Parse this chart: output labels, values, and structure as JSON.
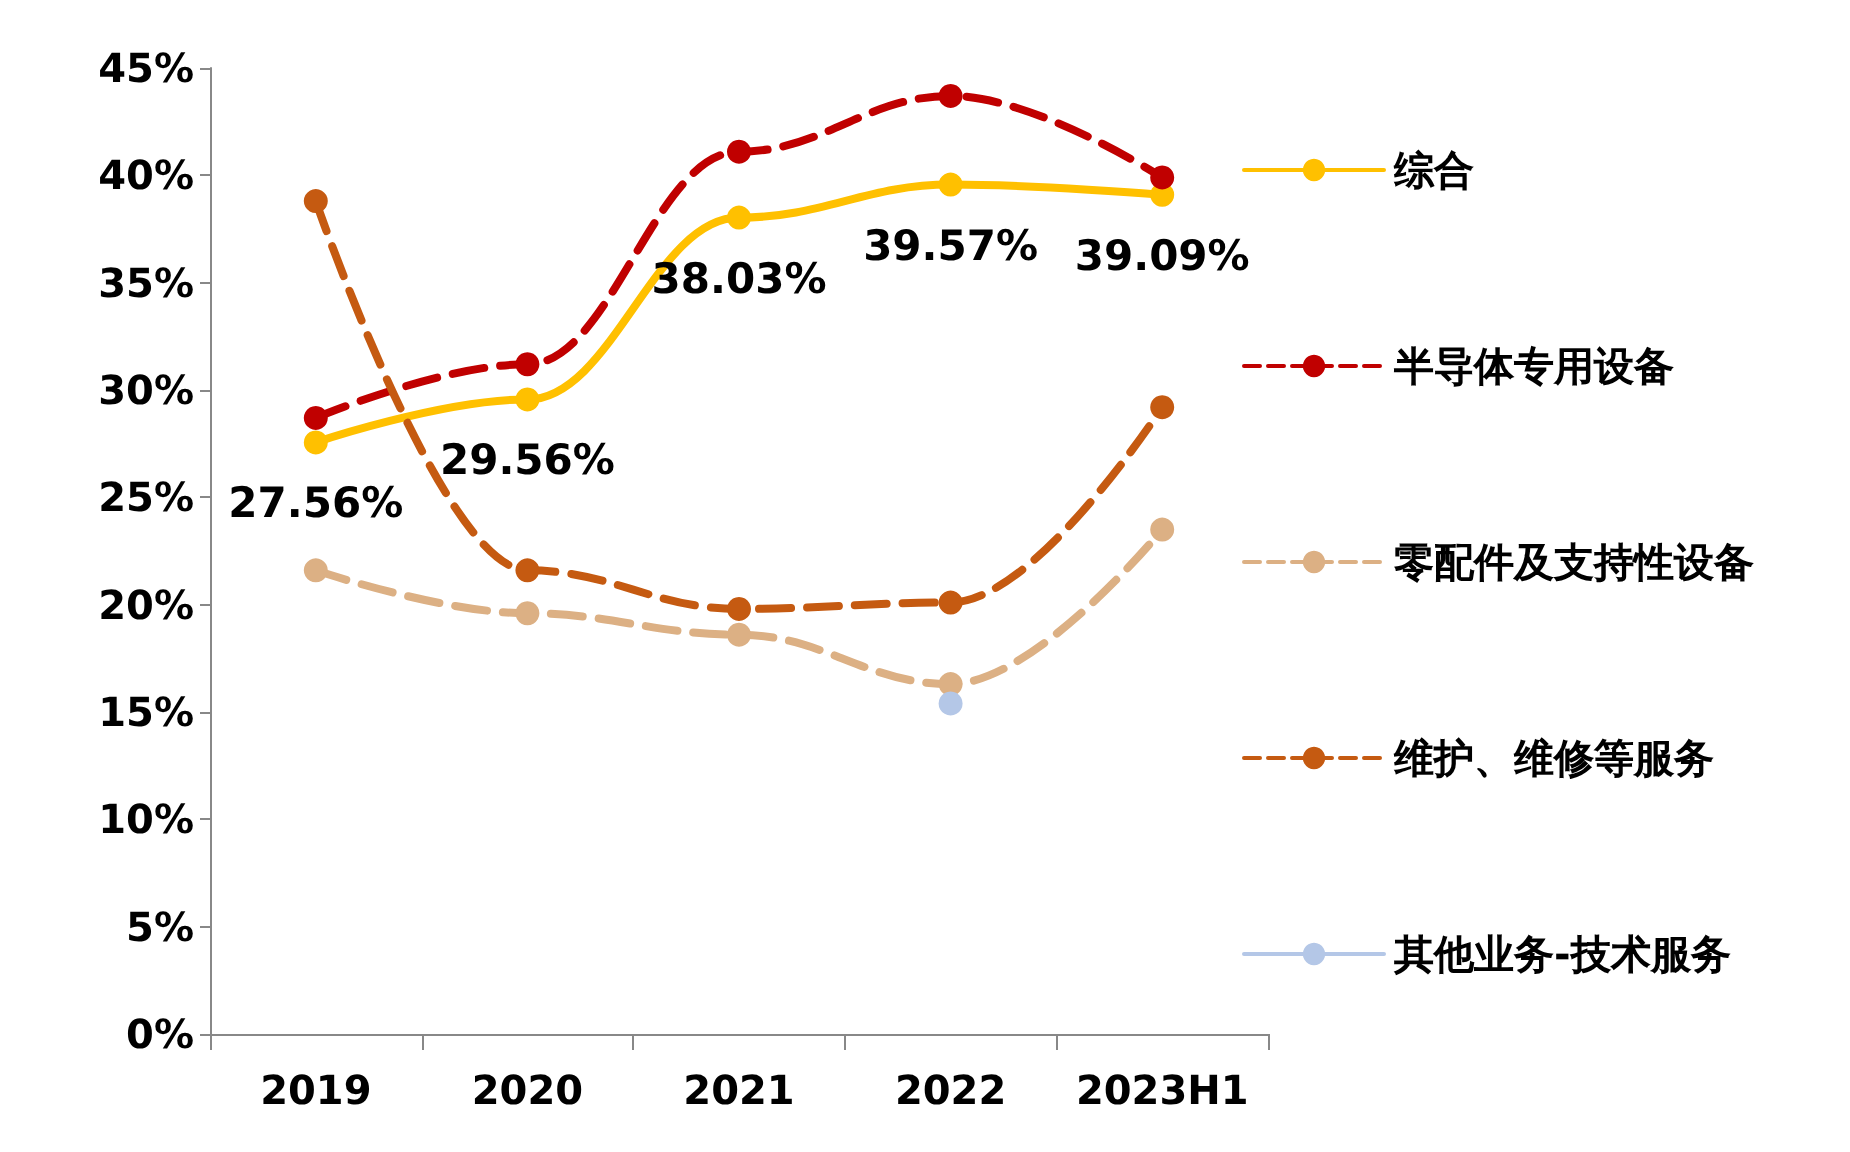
{
  "chart_data": {
    "type": "line",
    "categories": [
      "2019",
      "2020",
      "2021",
      "2022",
      "2023H1"
    ],
    "series": [
      {
        "name": "综合",
        "color": "#ffc000",
        "line_style": "solid",
        "values": [
          27.56,
          29.56,
          38.03,
          39.57,
          39.09
        ],
        "value_labels": [
          "27.56%",
          "29.56%",
          "38.03%",
          "39.57%",
          "39.09%"
        ]
      },
      {
        "name": "半导体专用设备",
        "color": "#c00000",
        "line_style": "dashed",
        "values": [
          28.7,
          31.2,
          41.1,
          43.7,
          39.9
        ]
      },
      {
        "name": "零配件及支持性设备",
        "color": "#dcb084",
        "line_style": "dashed",
        "values": [
          21.6,
          19.6,
          18.6,
          16.3,
          23.5
        ]
      },
      {
        "name": "维护、维修等服务",
        "color": "#c55a11",
        "line_style": "dashed",
        "values": [
          38.8,
          21.6,
          19.8,
          20.1,
          29.2
        ]
      },
      {
        "name": "其他业务-技术服务",
        "color": "#b4c7e7",
        "line_style": "solid",
        "values": [
          null,
          null,
          null,
          15.4,
          null
        ]
      }
    ],
    "ylim": [
      0,
      45
    ],
    "yticks": [
      {
        "value": 0,
        "label": "0%"
      },
      {
        "value": 5,
        "label": "5%"
      },
      {
        "value": 10,
        "label": "10%"
      },
      {
        "value": 15,
        "label": "15%"
      },
      {
        "value": 20,
        "label": "20%"
      },
      {
        "value": 25,
        "label": "25%"
      },
      {
        "value": 30,
        "label": "30%"
      },
      {
        "value": 35,
        "label": "35%"
      },
      {
        "value": 40,
        "label": "40%"
      },
      {
        "value": 45,
        "label": "45%"
      }
    ],
    "grid": false,
    "legend": "right",
    "marker": "circle"
  }
}
